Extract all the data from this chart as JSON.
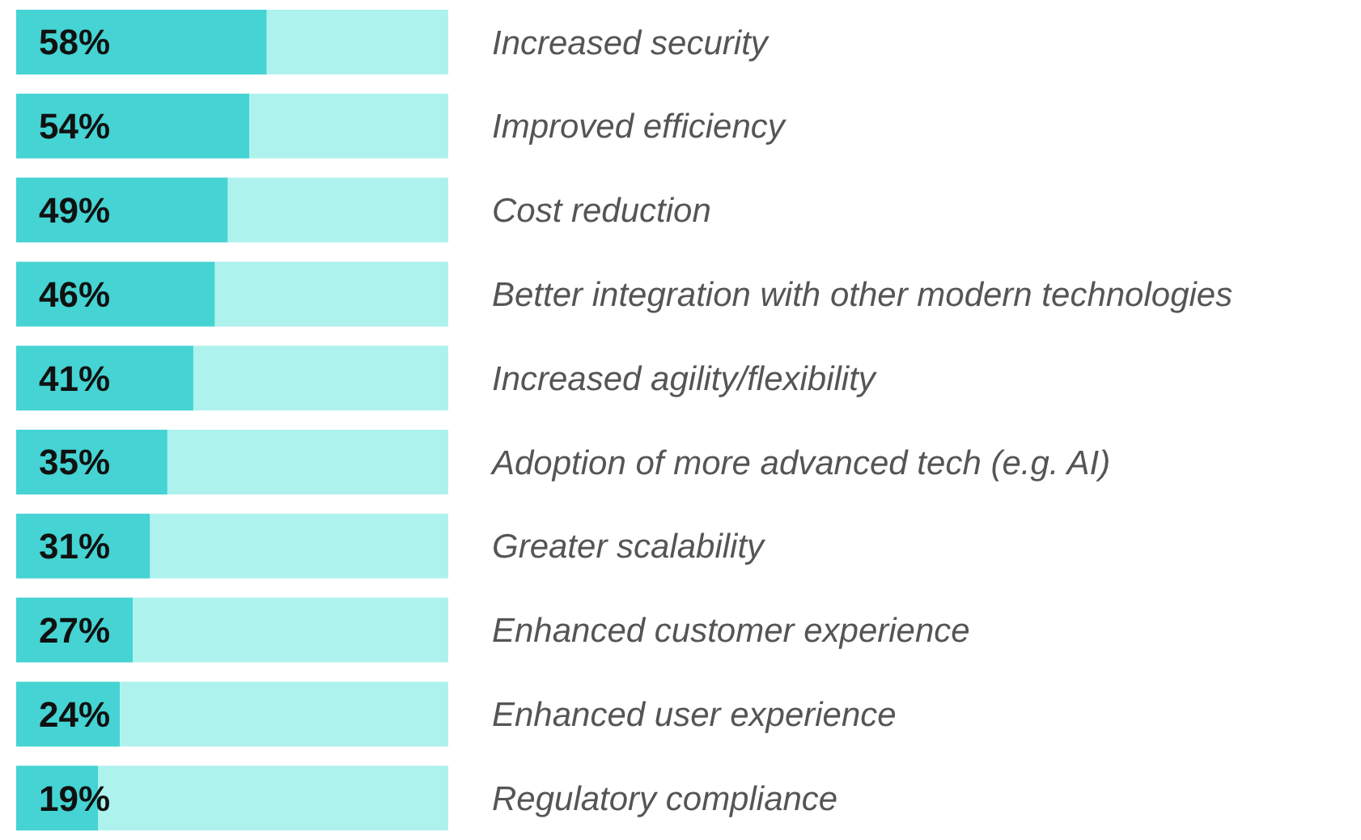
{
  "chart_data": {
    "type": "bar",
    "orientation": "horizontal",
    "stacked": true,
    "categories": [
      "Increased security",
      "Improved efficiency",
      "Cost reduction",
      "Better integration with other modern technologies",
      "Increased agility/flexibility",
      "Adoption of more advanced tech (e.g. AI)",
      "Greater scalability",
      "Enhanced customer experience",
      "Enhanced user experience",
      "Regulatory compliance"
    ],
    "series": [
      {
        "color": "#45d3d3",
        "values": [
          58,
          54,
          49,
          46,
          41,
          35,
          31,
          27,
          24,
          19
        ],
        "value_labels": [
          "58%",
          "54%",
          "49%",
          "46%",
          "41%",
          "35%",
          "31%",
          "27%",
          "24%",
          "19%"
        ]
      },
      {
        "color": "#aef2ee",
        "values": [
          42,
          46,
          51,
          54,
          59,
          65,
          69,
          73,
          76,
          81
        ]
      }
    ],
    "xlim": [
      0,
      100
    ],
    "tick_labels": "y",
    "grid": false,
    "legend": false
  }
}
